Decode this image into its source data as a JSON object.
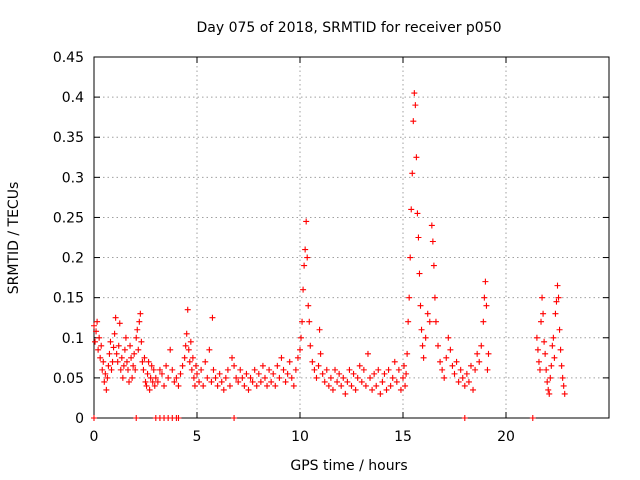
{
  "chart_data": {
    "type": "scatter",
    "title": "Day 075 of 2018, SRMTID for receiver p050",
    "xlabel": "GPS time / hours",
    "ylabel": "SRMTID / TECUs",
    "xlim": [
      0,
      25
    ],
    "ylim": [
      0,
      0.45
    ],
    "xticks": [
      0,
      5,
      10,
      15,
      20
    ],
    "xtick_labels": [
      "0",
      "5",
      "10",
      "15",
      "20"
    ],
    "yticks": [
      0,
      0.05,
      0.1,
      0.15,
      0.2,
      0.25,
      0.3,
      0.35,
      0.4,
      0.45
    ],
    "ytick_labels": [
      "0",
      "0.05",
      "0.1",
      "0.15",
      "0.2",
      "0.25",
      "0.3",
      "0.35",
      "0.4",
      "0.45"
    ],
    "grid": true,
    "marker": "+",
    "color": "#ff0000",
    "series": [
      {
        "name": "SRMTID",
        "points": [
          [
            0.0,
            0.115
          ],
          [
            0.05,
            0.095
          ],
          [
            0.1,
            0.108
          ],
          [
            0.15,
            0.12
          ],
          [
            0.2,
            0.085
          ],
          [
            0.25,
            0.1
          ],
          [
            0.3,
            0.075
          ],
          [
            0.35,
            0.09
          ],
          [
            0.4,
            0.06
          ],
          [
            0.45,
            0.07
          ],
          [
            0.5,
            0.045
          ],
          [
            0.55,
            0.055
          ],
          [
            0.6,
            0.035
          ],
          [
            0.65,
            0.05
          ],
          [
            0.7,
            0.065
          ],
          [
            0.75,
            0.08
          ],
          [
            0.8,
            0.095
          ],
          [
            0.85,
            0.06
          ],
          [
            0.9,
            0.07
          ],
          [
            0.95,
            0.088
          ],
          [
            1.0,
            0.105
          ],
          [
            1.05,
            0.125
          ],
          [
            1.1,
            0.08
          ],
          [
            1.15,
            0.07
          ],
          [
            1.2,
            0.09
          ],
          [
            1.25,
            0.118
          ],
          [
            1.3,
            0.06
          ],
          [
            1.35,
            0.075
          ],
          [
            1.4,
            0.05
          ],
          [
            1.45,
            0.065
          ],
          [
            1.5,
            0.085
          ],
          [
            1.55,
            0.1
          ],
          [
            1.6,
            0.07
          ],
          [
            1.65,
            0.06
          ],
          [
            1.7,
            0.045
          ],
          [
            1.75,
            0.09
          ],
          [
            1.8,
            0.075
          ],
          [
            1.85,
            0.05
          ],
          [
            1.9,
            0.065
          ],
          [
            1.95,
            0.08
          ],
          [
            2.0,
            0.06
          ],
          [
            2.05,
            0.1
          ],
          [
            2.1,
            0.11
          ],
          [
            2.15,
            0.085
          ],
          [
            2.2,
            0.12
          ],
          [
            2.25,
            0.13
          ],
          [
            2.3,
            0.095
          ],
          [
            2.35,
            0.07
          ],
          [
            2.4,
            0.06
          ],
          [
            2.45,
            0.075
          ],
          [
            2.5,
            0.045
          ],
          [
            2.55,
            0.04
          ],
          [
            2.6,
            0.055
          ],
          [
            2.65,
            0.07
          ],
          [
            2.7,
            0.035
          ],
          [
            2.75,
            0.05
          ],
          [
            2.8,
            0.065
          ],
          [
            2.85,
            0.045
          ],
          [
            2.9,
            0.06
          ],
          [
            2.95,
            0.04
          ],
          [
            3.0,
            0.05
          ],
          [
            3.1,
            0.045
          ],
          [
            3.2,
            0.06
          ],
          [
            3.3,
            0.055
          ],
          [
            3.4,
            0.04
          ],
          [
            3.5,
            0.065
          ],
          [
            3.6,
            0.05
          ],
          [
            3.7,
            0.085
          ],
          [
            3.8,
            0.06
          ],
          [
            3.9,
            0.045
          ],
          [
            4.0,
            0.05
          ],
          [
            4.1,
            0.04
          ],
          [
            4.2,
            0.055
          ],
          [
            4.3,
            0.065
          ],
          [
            4.4,
            0.075
          ],
          [
            4.45,
            0.09
          ],
          [
            4.5,
            0.105
          ],
          [
            4.55,
            0.135
          ],
          [
            4.6,
            0.085
          ],
          [
            4.65,
            0.07
          ],
          [
            4.7,
            0.095
          ],
          [
            4.75,
            0.06
          ],
          [
            4.8,
            0.075
          ],
          [
            4.85,
            0.05
          ],
          [
            4.9,
            0.04
          ],
          [
            4.95,
            0.065
          ],
          [
            5.0,
            0.055
          ],
          [
            5.1,
            0.045
          ],
          [
            5.2,
            0.06
          ],
          [
            5.3,
            0.04
          ],
          [
            5.4,
            0.07
          ],
          [
            5.5,
            0.05
          ],
          [
            5.6,
            0.085
          ],
          [
            5.7,
            0.045
          ],
          [
            5.75,
            0.125
          ],
          [
            5.8,
            0.06
          ],
          [
            5.9,
            0.05
          ],
          [
            6.0,
            0.04
          ],
          [
            6.1,
            0.055
          ],
          [
            6.2,
            0.045
          ],
          [
            6.3,
            0.035
          ],
          [
            6.4,
            0.05
          ],
          [
            6.5,
            0.06
          ],
          [
            6.6,
            0.04
          ],
          [
            6.7,
            0.075
          ],
          [
            6.8,
            0.065
          ],
          [
            6.9,
            0.05
          ],
          [
            7.0,
            0.045
          ],
          [
            7.1,
            0.06
          ],
          [
            7.2,
            0.05
          ],
          [
            7.3,
            0.04
          ],
          [
            7.4,
            0.055
          ],
          [
            7.5,
            0.035
          ],
          [
            7.6,
            0.05
          ],
          [
            7.7,
            0.045
          ],
          [
            7.8,
            0.06
          ],
          [
            7.9,
            0.04
          ],
          [
            8.0,
            0.055
          ],
          [
            8.1,
            0.045
          ],
          [
            8.2,
            0.065
          ],
          [
            8.3,
            0.05
          ],
          [
            8.4,
            0.04
          ],
          [
            8.5,
            0.06
          ],
          [
            8.6,
            0.045
          ],
          [
            8.7,
            0.055
          ],
          [
            8.8,
            0.04
          ],
          [
            8.9,
            0.065
          ],
          [
            9.0,
            0.05
          ],
          [
            9.1,
            0.075
          ],
          [
            9.2,
            0.06
          ],
          [
            9.3,
            0.045
          ],
          [
            9.4,
            0.055
          ],
          [
            9.5,
            0.07
          ],
          [
            9.6,
            0.05
          ],
          [
            9.7,
            0.04
          ],
          [
            9.8,
            0.06
          ],
          [
            9.9,
            0.075
          ],
          [
            10.0,
            0.085
          ],
          [
            10.05,
            0.1
          ],
          [
            10.1,
            0.12
          ],
          [
            10.15,
            0.16
          ],
          [
            10.2,
            0.19
          ],
          [
            10.25,
            0.21
          ],
          [
            10.3,
            0.245
          ],
          [
            10.35,
            0.2
          ],
          [
            10.4,
            0.14
          ],
          [
            10.45,
            0.12
          ],
          [
            10.5,
            0.09
          ],
          [
            10.6,
            0.07
          ],
          [
            10.7,
            0.06
          ],
          [
            10.8,
            0.05
          ],
          [
            10.9,
            0.065
          ],
          [
            10.95,
            0.11
          ],
          [
            11.0,
            0.08
          ],
          [
            11.1,
            0.055
          ],
          [
            11.2,
            0.045
          ],
          [
            11.3,
            0.06
          ],
          [
            11.4,
            0.04
          ],
          [
            11.5,
            0.05
          ],
          [
            11.6,
            0.035
          ],
          [
            11.7,
            0.06
          ],
          [
            11.8,
            0.045
          ],
          [
            11.9,
            0.055
          ],
          [
            12.0,
            0.04
          ],
          [
            12.1,
            0.05
          ],
          [
            12.2,
            0.03
          ],
          [
            12.3,
            0.045
          ],
          [
            12.4,
            0.06
          ],
          [
            12.5,
            0.04
          ],
          [
            12.6,
            0.055
          ],
          [
            12.7,
            0.035
          ],
          [
            12.8,
            0.05
          ],
          [
            12.9,
            0.065
          ],
          [
            13.0,
            0.045
          ],
          [
            13.1,
            0.06
          ],
          [
            13.2,
            0.04
          ],
          [
            13.3,
            0.08
          ],
          [
            13.4,
            0.05
          ],
          [
            13.5,
            0.035
          ],
          [
            13.6,
            0.055
          ],
          [
            13.7,
            0.04
          ],
          [
            13.8,
            0.06
          ],
          [
            13.9,
            0.03
          ],
          [
            14.0,
            0.045
          ],
          [
            14.1,
            0.055
          ],
          [
            14.2,
            0.035
          ],
          [
            14.3,
            0.06
          ],
          [
            14.4,
            0.04
          ],
          [
            14.5,
            0.05
          ],
          [
            14.6,
            0.07
          ],
          [
            14.7,
            0.045
          ],
          [
            14.8,
            0.06
          ],
          [
            14.9,
            0.035
          ],
          [
            15.0,
            0.05
          ],
          [
            15.05,
            0.065
          ],
          [
            15.1,
            0.04
          ],
          [
            15.15,
            0.055
          ],
          [
            15.2,
            0.08
          ],
          [
            15.25,
            0.12
          ],
          [
            15.3,
            0.15
          ],
          [
            15.35,
            0.2
          ],
          [
            15.4,
            0.26
          ],
          [
            15.45,
            0.305
          ],
          [
            15.5,
            0.37
          ],
          [
            15.55,
            0.405
          ],
          [
            15.6,
            0.39
          ],
          [
            15.65,
            0.325
          ],
          [
            15.7,
            0.255
          ],
          [
            15.75,
            0.225
          ],
          [
            15.8,
            0.18
          ],
          [
            15.85,
            0.14
          ],
          [
            15.9,
            0.11
          ],
          [
            15.95,
            0.09
          ],
          [
            16.0,
            0.075
          ],
          [
            16.1,
            0.1
          ],
          [
            16.2,
            0.13
          ],
          [
            16.3,
            0.12
          ],
          [
            16.4,
            0.24
          ],
          [
            16.45,
            0.22
          ],
          [
            16.5,
            0.19
          ],
          [
            16.55,
            0.15
          ],
          [
            16.6,
            0.12
          ],
          [
            16.7,
            0.09
          ],
          [
            16.8,
            0.07
          ],
          [
            16.9,
            0.06
          ],
          [
            17.0,
            0.05
          ],
          [
            17.1,
            0.075
          ],
          [
            17.2,
            0.1
          ],
          [
            17.3,
            0.085
          ],
          [
            17.4,
            0.065
          ],
          [
            17.5,
            0.055
          ],
          [
            17.6,
            0.07
          ],
          [
            17.7,
            0.045
          ],
          [
            17.8,
            0.06
          ],
          [
            17.9,
            0.05
          ],
          [
            18.0,
            0.04
          ],
          [
            18.1,
            0.055
          ],
          [
            18.2,
            0.045
          ],
          [
            18.3,
            0.065
          ],
          [
            18.4,
            0.035
          ],
          [
            18.5,
            0.06
          ],
          [
            18.6,
            0.08
          ],
          [
            18.7,
            0.07
          ],
          [
            18.8,
            0.09
          ],
          [
            18.9,
            0.12
          ],
          [
            18.95,
            0.15
          ],
          [
            19.0,
            0.17
          ],
          [
            19.05,
            0.14
          ],
          [
            19.1,
            0.06
          ],
          [
            19.15,
            0.08
          ],
          [
            21.5,
            0.1
          ],
          [
            21.55,
            0.085
          ],
          [
            21.6,
            0.07
          ],
          [
            21.65,
            0.06
          ],
          [
            21.7,
            0.12
          ],
          [
            21.75,
            0.15
          ],
          [
            21.8,
            0.13
          ],
          [
            21.85,
            0.095
          ],
          [
            21.9,
            0.08
          ],
          [
            21.95,
            0.06
          ],
          [
            22.0,
            0.045
          ],
          [
            22.05,
            0.035
          ],
          [
            22.1,
            0.03
          ],
          [
            22.15,
            0.05
          ],
          [
            22.2,
            0.065
          ],
          [
            22.25,
            0.09
          ],
          [
            22.3,
            0.1
          ],
          [
            22.35,
            0.075
          ],
          [
            22.4,
            0.13
          ],
          [
            22.45,
            0.145
          ],
          [
            22.5,
            0.165
          ],
          [
            22.55,
            0.15
          ],
          [
            22.6,
            0.11
          ],
          [
            22.65,
            0.085
          ],
          [
            22.7,
            0.065
          ],
          [
            22.75,
            0.05
          ],
          [
            22.8,
            0.04
          ],
          [
            22.85,
            0.03
          ],
          [
            0.0,
            0.0
          ],
          [
            2.05,
            0.0
          ],
          [
            3.0,
            0.0
          ],
          [
            3.2,
            0.0
          ],
          [
            3.4,
            0.0
          ],
          [
            3.6,
            0.0
          ],
          [
            3.8,
            0.0
          ],
          [
            4.0,
            0.0
          ],
          [
            4.1,
            0.0
          ],
          [
            6.8,
            0.0
          ],
          [
            18.0,
            0.0
          ],
          [
            21.3,
            0.0
          ]
        ]
      }
    ]
  }
}
